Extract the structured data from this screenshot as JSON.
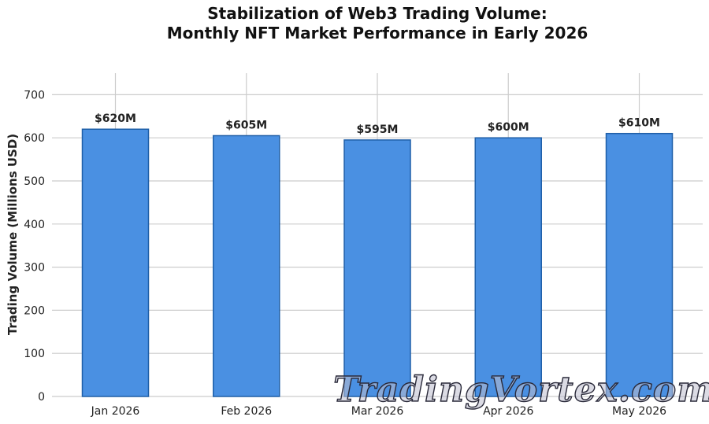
{
  "chart_data": {
    "type": "bar",
    "title_line1": "Stabilization of Web3 Trading Volume:",
    "title_line2": "Monthly NFT Market Performance in Early 2026",
    "xlabel": "",
    "ylabel": "Trading Volume (Millions USD)",
    "categories": [
      "Jan 2026",
      "Feb 2026",
      "Mar 2026",
      "Apr 2026",
      "May 2026"
    ],
    "values": [
      620,
      605,
      595,
      600,
      610
    ],
    "data_labels": [
      "$620M",
      "$605M",
      "$595M",
      "$600M",
      "$610M"
    ],
    "ylim": [
      0,
      750
    ],
    "yticks": [
      0,
      100,
      200,
      300,
      400,
      500,
      600,
      700
    ],
    "grid": true,
    "bar_color": "#4a90e2",
    "bar_edge_color": "#1f5fa8"
  },
  "watermark": {
    "text": "TradingVortex.com"
  }
}
